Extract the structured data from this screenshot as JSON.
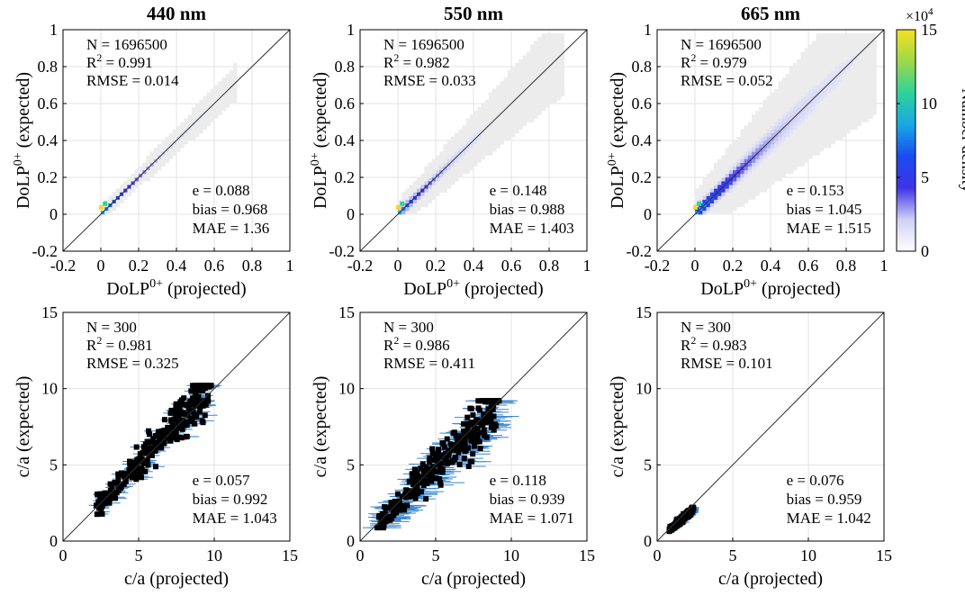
{
  "chart_data": [
    {
      "type": "heatmap",
      "title": "440 nm",
      "xlabel": "DoLP^0+ (projected)",
      "ylabel": "DoLP^0+ (expected)",
      "xlim": [
        -0.2,
        1
      ],
      "ylim": [
        -0.2,
        1
      ],
      "xticks": [
        "-0.2",
        "0",
        "0.2",
        "0.4",
        "0.6",
        "0.8",
        "1"
      ],
      "yticks": [
        "-0.2",
        "0",
        "0.2",
        "0.4",
        "0.6",
        "0.8",
        "1"
      ],
      "grid": true,
      "stats_top": [
        "N = 1696500",
        "R^2 = 0.991",
        "RMSE = 0.014"
      ],
      "stats_bottom": [
        "e = 0.088",
        "bias = 0.968",
        "MAE = 1.36"
      ],
      "spread": 0.05,
      "xmax": 0.72,
      "corefrac": 0.55
    },
    {
      "type": "heatmap",
      "title": "550 nm",
      "xlabel": "DoLP^0+ (projected)",
      "ylabel": "DoLP^0+ (expected)",
      "xlim": [
        -0.2,
        1
      ],
      "ylim": [
        -0.2,
        1
      ],
      "xticks": [
        "-0.2",
        "0",
        "0.2",
        "0.4",
        "0.6",
        "0.8",
        "1"
      ],
      "yticks": [
        "-0.2",
        "0",
        "0.2",
        "0.4",
        "0.6",
        "0.8",
        "1"
      ],
      "grid": true,
      "stats_top": [
        "N = 1696500",
        "R^2 = 0.982",
        "RMSE = 0.033"
      ],
      "stats_bottom": [
        "e = 0.148",
        "bias = 0.988",
        "MAE = 1.403"
      ],
      "spread": 0.1,
      "xmax": 0.88,
      "corefrac": 0.5
    },
    {
      "type": "heatmap",
      "title": "665 nm",
      "xlabel": "DoLP^0+ (projected)",
      "ylabel": "DoLP^0+ (expected)",
      "xlim": [
        -0.2,
        1
      ],
      "ylim": [
        -0.2,
        1
      ],
      "xticks": [
        "-0.2",
        "0",
        "0.2",
        "0.4",
        "0.6",
        "0.8",
        "1"
      ],
      "yticks": [
        "-0.2",
        "0",
        "0.2",
        "0.4",
        "0.6",
        "0.8",
        "1"
      ],
      "grid": true,
      "stats_top": [
        "N = 1696500",
        "R^2 = 0.979",
        "RMSE = 0.052"
      ],
      "stats_bottom": [
        "e = 0.153",
        "bias = 1.045",
        "MAE = 1.515"
      ],
      "spread": 0.17,
      "xmax": 0.95,
      "corefrac": 0.85
    },
    {
      "type": "scatter",
      "title": "",
      "xlabel": "c/a (projected)",
      "ylabel": "c/a (expected)",
      "xlim": [
        0,
        15
      ],
      "ylim": [
        0,
        15
      ],
      "xticks": [
        "0",
        "5",
        "10",
        "15"
      ],
      "yticks": [
        "0",
        "5",
        "10",
        "15"
      ],
      "grid": true,
      "stats_top": [
        "N = 300",
        "R^2 = 0.981",
        "RMSE = 0.325"
      ],
      "stats_bottom": [
        "e = 0.057",
        "bias = 0.992",
        "MAE = 1.043"
      ],
      "xmin_pts": 2.2,
      "xmax_pts": 9.8,
      "slope": 1.03,
      "spread": 0.45,
      "err": 0.6,
      "ycap": 10.2
    },
    {
      "type": "scatter",
      "title": "",
      "xlabel": "c/a (projected)",
      "ylabel": "c/a (expected)",
      "xlim": [
        0,
        15
      ],
      "ylim": [
        0,
        15
      ],
      "xticks": [
        "0",
        "5",
        "10",
        "15"
      ],
      "yticks": [
        "0",
        "5",
        "10",
        "15"
      ],
      "grid": true,
      "stats_top": [
        "N = 300",
        "R^2 = 0.986",
        "RMSE = 0.411"
      ],
      "stats_bottom": [
        "e = 0.118",
        "bias = 0.939",
        "MAE = 1.071"
      ],
      "xmin_pts": 1.1,
      "xmax_pts": 9.2,
      "slope": 0.98,
      "spread": 0.6,
      "err": 1.2,
      "ycap": 9.2
    },
    {
      "type": "scatter",
      "title": "",
      "xlabel": "c/a (projected)",
      "ylabel": "c/a (expected)",
      "xlim": [
        0,
        15
      ],
      "ylim": [
        0,
        15
      ],
      "xticks": [
        "0",
        "5",
        "10",
        "15"
      ],
      "yticks": [
        "0",
        "5",
        "10",
        "15"
      ],
      "grid": true,
      "stats_top": [
        "N = 300",
        "R^2 = 0.983",
        "RMSE = 0.101"
      ],
      "stats_bottom": [
        "e = 0.076",
        "bias = 0.959",
        "MAE = 1.042"
      ],
      "xmin_pts": 0.8,
      "xmax_pts": 2.4,
      "slope": 0.88,
      "spread": 0.15,
      "err": 0.35,
      "ycap": 2.2
    }
  ],
  "colorbar": {
    "label": "Number density",
    "multiplier": "×10^4",
    "ticks": [
      "0",
      "5",
      "10",
      "15"
    ],
    "range": [
      0,
      15
    ],
    "colors": [
      "#ffffff",
      "#cfd0f4",
      "#3f33e6",
      "#1a4bf0",
      "#18a8e6",
      "#2ed29a",
      "#9bd94a",
      "#f6e020"
    ]
  }
}
